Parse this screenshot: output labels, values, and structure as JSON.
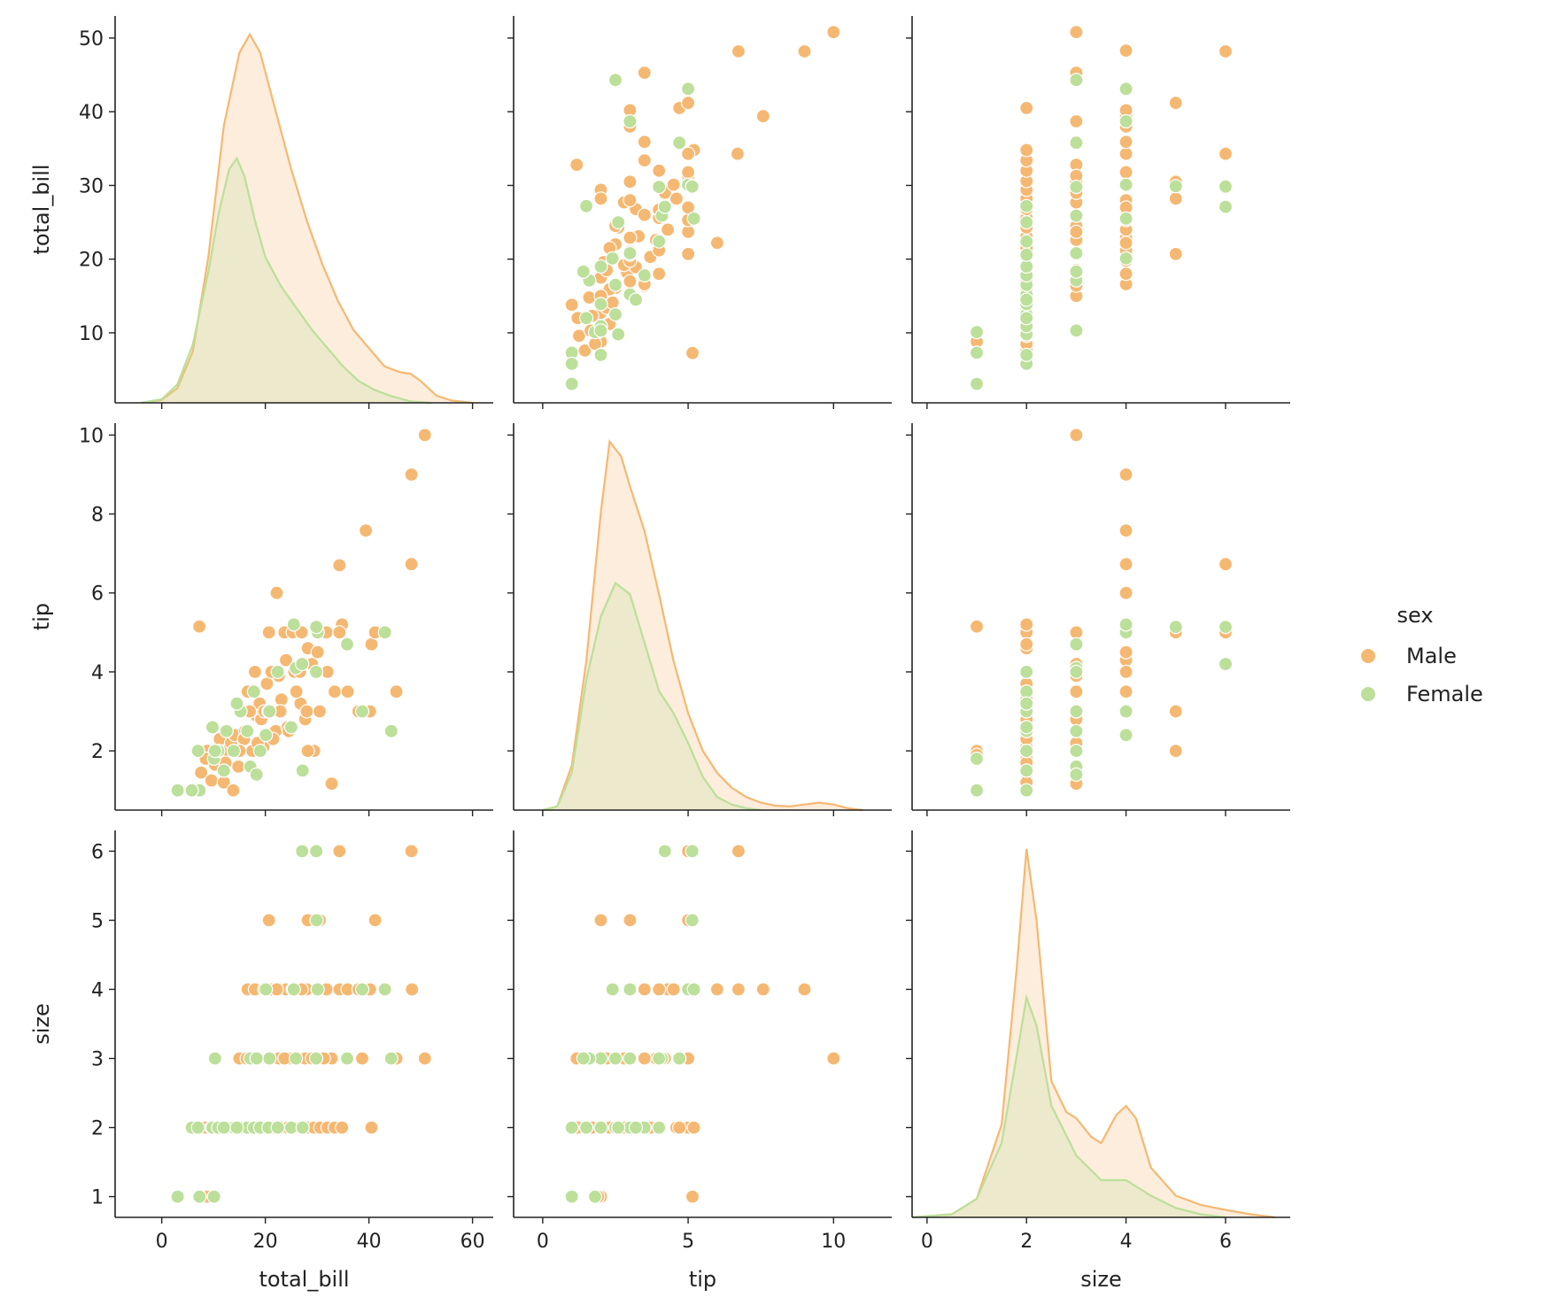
{
  "chart_data": {
    "type": "scatter",
    "kind": "pairplot",
    "variables": [
      "total_bill",
      "tip",
      "size"
    ],
    "hue": "sex",
    "legend": {
      "title": "sex",
      "placement": "center-right",
      "entries": [
        {
          "name": "Male",
          "color": "#f5b872"
        },
        {
          "name": "Female",
          "color": "#bcdf9a"
        }
      ]
    },
    "diagonal": "kde",
    "axes": {
      "total_bill": {
        "lim": [
          -9,
          64
        ],
        "ticks": [
          0,
          20,
          40,
          60
        ],
        "row_ticks": [
          10,
          20,
          30,
          40,
          50
        ],
        "row_lim": [
          0.5,
          53
        ]
      },
      "tip": {
        "lim": [
          -1,
          12
        ],
        "ticks": [
          0,
          5,
          10
        ],
        "row_ticks": [
          2,
          4,
          6,
          8,
          10
        ],
        "row_lim": [
          0.5,
          10.3
        ]
      },
      "size": {
        "lim": [
          -0.3,
          7.3
        ],
        "ticks": [
          0,
          2,
          4,
          6
        ],
        "row_ticks": [
          1,
          2,
          3,
          4,
          5,
          6
        ],
        "row_lim": [
          0.7,
          6.3
        ]
      }
    },
    "kde": {
      "total_bill": {
        "Male": [
          [
            -4,
            0
          ],
          [
            0,
            0.4
          ],
          [
            3,
            2
          ],
          [
            6,
            7
          ],
          [
            9,
            20
          ],
          [
            12,
            38
          ],
          [
            15,
            48
          ],
          [
            17,
            50.5
          ],
          [
            19,
            48
          ],
          [
            22,
            40
          ],
          [
            25,
            32
          ],
          [
            28,
            25
          ],
          [
            31,
            19
          ],
          [
            34,
            14
          ],
          [
            37,
            10
          ],
          [
            40,
            7.5
          ],
          [
            43,
            5
          ],
          [
            46,
            4.2
          ],
          [
            48,
            4
          ],
          [
            50,
            3
          ],
          [
            53,
            1
          ],
          [
            56,
            0.3
          ],
          [
            60,
            0
          ]
        ],
        "Female": [
          [
            -4,
            0
          ],
          [
            0,
            0.5
          ],
          [
            3,
            2.5
          ],
          [
            6,
            8
          ],
          [
            9,
            18
          ],
          [
            11,
            26
          ],
          [
            13,
            32
          ],
          [
            14.5,
            33.5
          ],
          [
            16,
            31
          ],
          [
            18,
            25
          ],
          [
            20,
            20
          ],
          [
            23,
            16
          ],
          [
            26,
            13
          ],
          [
            29,
            10
          ],
          [
            32,
            7.5
          ],
          [
            35,
            5
          ],
          [
            38,
            3
          ],
          [
            41,
            1.8
          ],
          [
            44,
            1
          ],
          [
            48,
            0.2
          ],
          [
            52,
            0
          ]
        ]
      },
      "tip": {
        "Male": [
          [
            0,
            0
          ],
          [
            0.5,
            0.1
          ],
          [
            1,
            1.2
          ],
          [
            1.5,
            4
          ],
          [
            2,
            8
          ],
          [
            2.3,
            9.9
          ],
          [
            2.7,
            9.5
          ],
          [
            3,
            8.7
          ],
          [
            3.5,
            7.5
          ],
          [
            4,
            5.8
          ],
          [
            4.5,
            4
          ],
          [
            5,
            2.6
          ],
          [
            5.5,
            1.6
          ],
          [
            6,
            1
          ],
          [
            6.5,
            0.6
          ],
          [
            7,
            0.35
          ],
          [
            7.5,
            0.2
          ],
          [
            8,
            0.12
          ],
          [
            8.5,
            0.1
          ],
          [
            9,
            0.15
          ],
          [
            9.5,
            0.2
          ],
          [
            10,
            0.15
          ],
          [
            10.5,
            0.05
          ],
          [
            11,
            0
          ]
        ],
        "Female": [
          [
            0,
            0
          ],
          [
            0.5,
            0.1
          ],
          [
            1,
            1
          ],
          [
            1.5,
            3.5
          ],
          [
            2,
            5.2
          ],
          [
            2.5,
            6.1
          ],
          [
            3,
            5.8
          ],
          [
            3.5,
            4.5
          ],
          [
            4,
            3.2
          ],
          [
            4.5,
            2.6
          ],
          [
            5,
            1.8
          ],
          [
            5.5,
            0.9
          ],
          [
            6,
            0.35
          ],
          [
            6.5,
            0.15
          ],
          [
            7,
            0.05
          ],
          [
            7.5,
            0
          ]
        ]
      },
      "size": {
        "Male": [
          [
            -0.3,
            0
          ],
          [
            0.5,
            0.05
          ],
          [
            1,
            0.3
          ],
          [
            1.5,
            1.5
          ],
          [
            1.8,
            4
          ],
          [
            2,
            5.95
          ],
          [
            2.2,
            4.8
          ],
          [
            2.5,
            2.2
          ],
          [
            2.8,
            1.7
          ],
          [
            3,
            1.6
          ],
          [
            3.3,
            1.3
          ],
          [
            3.5,
            1.2
          ],
          [
            3.8,
            1.65
          ],
          [
            4,
            1.8
          ],
          [
            4.2,
            1.6
          ],
          [
            4.5,
            0.8
          ],
          [
            5,
            0.35
          ],
          [
            5.5,
            0.2
          ],
          [
            6,
            0.12
          ],
          [
            6.5,
            0.05
          ],
          [
            7,
            0
          ]
        ],
        "Female": [
          [
            -0.3,
            0
          ],
          [
            0.5,
            0.05
          ],
          [
            1,
            0.3
          ],
          [
            1.5,
            1.2
          ],
          [
            1.8,
            2.6
          ],
          [
            2,
            3.55
          ],
          [
            2.2,
            3.1
          ],
          [
            2.5,
            1.8
          ],
          [
            3,
            1.0
          ],
          [
            3.5,
            0.6
          ],
          [
            4,
            0.6
          ],
          [
            4.5,
            0.35
          ],
          [
            5,
            0.15
          ],
          [
            5.5,
            0.05
          ],
          [
            6,
            0
          ]
        ]
      }
    },
    "points": {
      "Male": [
        {
          "total_bill": 7.25,
          "tip": 5.15,
          "size": 1
        },
        {
          "total_bill": 8.8,
          "tip": 2,
          "size": 1
        },
        {
          "total_bill": 10.1,
          "tip": 1.9,
          "size": 1
        },
        {
          "total_bill": 7.6,
          "tip": 1.45,
          "size": 2
        },
        {
          "total_bill": 8.5,
          "tip": 1.8,
          "size": 2
        },
        {
          "total_bill": 9.6,
          "tip": 1.25,
          "size": 2
        },
        {
          "total_bill": 10.3,
          "tip": 1.65,
          "size": 2
        },
        {
          "total_bill": 11.2,
          "tip": 2.3,
          "size": 2
        },
        {
          "total_bill": 12.0,
          "tip": 1.2,
          "size": 2
        },
        {
          "total_bill": 12.7,
          "tip": 2.0,
          "size": 2
        },
        {
          "total_bill": 13.4,
          "tip": 2.2,
          "size": 2
        },
        {
          "total_bill": 14.1,
          "tip": 2.4,
          "size": 2
        },
        {
          "total_bill": 14.8,
          "tip": 1.6,
          "size": 2
        },
        {
          "total_bill": 15.4,
          "tip": 3.0,
          "size": 2
        },
        {
          "total_bill": 16.1,
          "tip": 2.5,
          "size": 2
        },
        {
          "total_bill": 16.8,
          "tip": 3.5,
          "size": 2
        },
        {
          "total_bill": 17.5,
          "tip": 2.0,
          "size": 2
        },
        {
          "total_bill": 18.2,
          "tip": 2.9,
          "size": 2
        },
        {
          "total_bill": 18.9,
          "tip": 3.2,
          "size": 2
        },
        {
          "total_bill": 19.6,
          "tip": 2.1,
          "size": 2
        },
        {
          "total_bill": 20.3,
          "tip": 3.7,
          "size": 2
        },
        {
          "total_bill": 21.0,
          "tip": 3.0,
          "size": 2
        },
        {
          "total_bill": 22.0,
          "tip": 2.5,
          "size": 2
        },
        {
          "total_bill": 23.1,
          "tip": 3.3,
          "size": 2
        },
        {
          "total_bill": 24.3,
          "tip": 2.6,
          "size": 2
        },
        {
          "total_bill": 25.6,
          "tip": 4.0,
          "size": 2
        },
        {
          "total_bill": 26.8,
          "tip": 3.2,
          "size": 2
        },
        {
          "total_bill": 28.2,
          "tip": 4.6,
          "size": 2
        },
        {
          "total_bill": 29.4,
          "tip": 2.0,
          "size": 2
        },
        {
          "total_bill": 30.6,
          "tip": 5.0,
          "size": 2
        },
        {
          "total_bill": 32.0,
          "tip": 4.0,
          "size": 2
        },
        {
          "total_bill": 33.4,
          "tip": 3.5,
          "size": 2
        },
        {
          "total_bill": 34.8,
          "tip": 5.2,
          "size": 2
        },
        {
          "total_bill": 40.5,
          "tip": 4.7,
          "size": 2
        },
        {
          "total_bill": 12.3,
          "tip": 1.7,
          "size": 2
        },
        {
          "total_bill": 15.9,
          "tip": 2.3,
          "size": 2
        },
        {
          "total_bill": 19.2,
          "tip": 2.8,
          "size": 2
        },
        {
          "total_bill": 21.5,
          "tip": 2.3,
          "size": 2
        },
        {
          "total_bill": 13.8,
          "tip": 1.0,
          "size": 2
        },
        {
          "total_bill": 17.0,
          "tip": 3.0,
          "size": 2
        },
        {
          "total_bill": 15.0,
          "tip": 2.0,
          "size": 3
        },
        {
          "total_bill": 16.4,
          "tip": 3.5,
          "size": 3
        },
        {
          "total_bill": 18.5,
          "tip": 2.2,
          "size": 3
        },
        {
          "total_bill": 20.7,
          "tip": 3.0,
          "size": 3
        },
        {
          "total_bill": 22.6,
          "tip": 3.9,
          "size": 3
        },
        {
          "total_bill": 24.5,
          "tip": 2.5,
          "size": 3
        },
        {
          "total_bill": 26.0,
          "tip": 3.5,
          "size": 3
        },
        {
          "total_bill": 27.7,
          "tip": 2.8,
          "size": 3
        },
        {
          "total_bill": 29.0,
          "tip": 4.2,
          "size": 3
        },
        {
          "total_bill": 30.5,
          "tip": 3.0,
          "size": 3
        },
        {
          "total_bill": 32.8,
          "tip": 1.17,
          "size": 3
        },
        {
          "total_bill": 38.7,
          "tip": 3.0,
          "size": 3
        },
        {
          "total_bill": 45.3,
          "tip": 3.5,
          "size": 3
        },
        {
          "total_bill": 50.8,
          "tip": 10.0,
          "size": 3
        },
        {
          "total_bill": 23.7,
          "tip": 5.0,
          "size": 3
        },
        {
          "total_bill": 31.3,
          "tip": 5.0,
          "size": 3
        },
        {
          "total_bill": 16.6,
          "tip": 3.5,
          "size": 4
        },
        {
          "total_bill": 18.0,
          "tip": 4.0,
          "size": 4
        },
        {
          "total_bill": 19.8,
          "tip": 3.0,
          "size": 4
        },
        {
          "total_bill": 21.2,
          "tip": 4.0,
          "size": 4
        },
        {
          "total_bill": 22.9,
          "tip": 3.0,
          "size": 4
        },
        {
          "total_bill": 24.0,
          "tip": 4.3,
          "size": 4
        },
        {
          "total_bill": 25.3,
          "tip": 5.0,
          "size": 4
        },
        {
          "total_bill": 26.7,
          "tip": 4.0,
          "size": 4
        },
        {
          "total_bill": 28.0,
          "tip": 3.0,
          "size": 4
        },
        {
          "total_bill": 30.1,
          "tip": 4.5,
          "size": 4
        },
        {
          "total_bill": 31.8,
          "tip": 5.0,
          "size": 4
        },
        {
          "total_bill": 34.3,
          "tip": 6.7,
          "size": 4
        },
        {
          "total_bill": 35.9,
          "tip": 3.5,
          "size": 4
        },
        {
          "total_bill": 38.0,
          "tip": 3.0,
          "size": 4
        },
        {
          "total_bill": 39.4,
          "tip": 7.58,
          "size": 4
        },
        {
          "total_bill": 40.2,
          "tip": 3.0,
          "size": 4
        },
        {
          "total_bill": 48.2,
          "tip": 9.0,
          "size": 4
        },
        {
          "total_bill": 48.3,
          "tip": 6.73,
          "size": 4
        },
        {
          "total_bill": 22.2,
          "tip": 6.0,
          "size": 4
        },
        {
          "total_bill": 27.0,
          "tip": 5.0,
          "size": 4
        },
        {
          "total_bill": 20.7,
          "tip": 5.0,
          "size": 5
        },
        {
          "total_bill": 28.2,
          "tip": 2.0,
          "size": 5
        },
        {
          "total_bill": 30.5,
          "tip": 3.0,
          "size": 5
        },
        {
          "total_bill": 41.2,
          "tip": 5.0,
          "size": 5
        },
        {
          "total_bill": 34.3,
          "tip": 5.0,
          "size": 6
        },
        {
          "total_bill": 48.2,
          "tip": 6.73,
          "size": 6
        }
      ],
      "Female": [
        {
          "total_bill": 3.07,
          "tip": 1.0,
          "size": 1
        },
        {
          "total_bill": 7.3,
          "tip": 1.0,
          "size": 1
        },
        {
          "total_bill": 10.1,
          "tip": 1.8,
          "size": 1
        },
        {
          "total_bill": 5.8,
          "tip": 1.0,
          "size": 2
        },
        {
          "total_bill": 7.0,
          "tip": 2.0,
          "size": 2
        },
        {
          "total_bill": 9.8,
          "tip": 2.6,
          "size": 2
        },
        {
          "total_bill": 10.9,
          "tip": 2.0,
          "size": 2
        },
        {
          "total_bill": 12.5,
          "tip": 2.5,
          "size": 2
        },
        {
          "total_bill": 13.9,
          "tip": 2.0,
          "size": 2
        },
        {
          "total_bill": 15.2,
          "tip": 3.0,
          "size": 2
        },
        {
          "total_bill": 16.5,
          "tip": 2.5,
          "size": 2
        },
        {
          "total_bill": 17.8,
          "tip": 3.5,
          "size": 2
        },
        {
          "total_bill": 19.0,
          "tip": 2.0,
          "size": 2
        },
        {
          "total_bill": 20.6,
          "tip": 3.0,
          "size": 2
        },
        {
          "total_bill": 22.4,
          "tip": 4.0,
          "size": 2
        },
        {
          "total_bill": 25.0,
          "tip": 2.6,
          "size": 2
        },
        {
          "total_bill": 27.2,
          "tip": 1.5,
          "size": 2
        },
        {
          "total_bill": 12.0,
          "tip": 1.5,
          "size": 2
        },
        {
          "total_bill": 14.5,
          "tip": 3.2,
          "size": 2
        },
        {
          "total_bill": 10.3,
          "tip": 2.0,
          "size": 3
        },
        {
          "total_bill": 17.1,
          "tip": 1.6,
          "size": 3
        },
        {
          "total_bill": 20.8,
          "tip": 3.0,
          "size": 3
        },
        {
          "total_bill": 25.9,
          "tip": 4.1,
          "size": 3
        },
        {
          "total_bill": 29.8,
          "tip": 4.0,
          "size": 3
        },
        {
          "total_bill": 35.8,
          "tip": 4.7,
          "size": 3
        },
        {
          "total_bill": 44.3,
          "tip": 2.5,
          "size": 3
        },
        {
          "total_bill": 18.3,
          "tip": 1.4,
          "size": 3
        },
        {
          "total_bill": 20.1,
          "tip": 2.4,
          "size": 4
        },
        {
          "total_bill": 30.1,
          "tip": 5.0,
          "size": 4
        },
        {
          "total_bill": 38.7,
          "tip": 3.0,
          "size": 4
        },
        {
          "total_bill": 43.1,
          "tip": 5.0,
          "size": 4
        },
        {
          "total_bill": 25.5,
          "tip": 5.2,
          "size": 4
        },
        {
          "total_bill": 29.9,
          "tip": 5.14,
          "size": 5
        },
        {
          "total_bill": 27.1,
          "tip": 4.2,
          "size": 6
        },
        {
          "total_bill": 29.85,
          "tip": 5.14,
          "size": 6
        }
      ]
    }
  }
}
